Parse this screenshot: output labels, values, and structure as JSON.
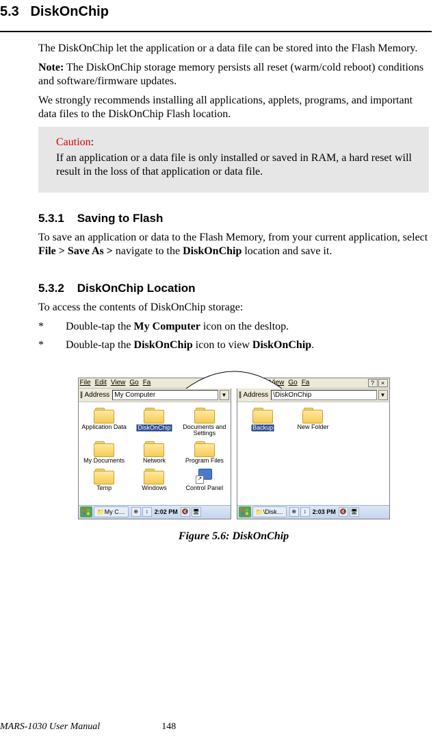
{
  "section": {
    "number": "5.3",
    "title": "DiskOnChip"
  },
  "para1": "The DiskOnChip let the application or a data file can be stored into the Flash Memory.",
  "para2_bold": "Note:",
  "para2": " The DiskOnChip storage memory persists all reset (warm/cold reboot) conditions and software/firmware updates.",
  "para3": "We strongly recommends installing all applications, applets, programs, and important data files to the DiskOnChip Flash location.",
  "caution": {
    "label": "Caution",
    "text": "If an application or a data file is only installed or saved in RAM, a hard reset will result in the loss of that application or data file."
  },
  "sub1": {
    "num": "5.3.1",
    "title": "Saving to Flash",
    "para_a": "To save an application or data to the Flash Memory, from your current application, select ",
    "bold_a": "File > Save As >",
    "para_b": " navigate to the ",
    "bold_b": "DiskOnChip",
    "para_c": " location and save it."
  },
  "sub2": {
    "num": "5.3.2",
    "title": "DiskOnChip Location",
    "intro": "To access the contents of DiskOnChip storage:",
    "b1_a": "Double-tap the ",
    "b1_bold": "My Computer",
    "b1_b": " icon on the desltop.",
    "b2_a": "Double-tap the ",
    "b2_bold1": "DiskOnChip",
    "b2_b": " icon to view ",
    "b2_bold2": "DiskOnChip",
    "b2_c": "."
  },
  "windows": {
    "menu": {
      "file": "File",
      "edit": "Edit",
      "view": "View",
      "go": "Go",
      "fav": "Fa"
    },
    "addr_label": "Address",
    "left": {
      "addr_value": "My Computer",
      "icons": [
        "Application Data",
        "DiskOnChip",
        "Documents and Settings",
        "My Documents",
        "Network",
        "Program Files",
        "Temp",
        "Windows",
        "Control Panel"
      ],
      "selected_index": 1,
      "task_label": "My C…",
      "time": "2:02 PM"
    },
    "right": {
      "addr_value": "\\DiskOnChip",
      "icons": [
        "Backup",
        "New Folder"
      ],
      "selected_index": 0,
      "task_label": "\\Disk…",
      "time": "2:03 PM"
    }
  },
  "figure_caption": "Figure 5.6: DiskOnChip",
  "footer": {
    "manual": "MARS-1030 User Manual",
    "page": "148"
  },
  "colors": {
    "caution_bg": "#e6e6e6",
    "caution_red": "#d40000",
    "folder_fill": "#f5cc55",
    "selection_bg": "#2a4b8d"
  }
}
